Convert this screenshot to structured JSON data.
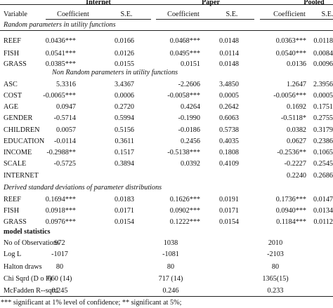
{
  "header": {
    "groups": [
      "Internet",
      "Paper",
      "Pooled"
    ],
    "variable_label": "Variable",
    "coef_label": "Coefficient",
    "se_label": "S.E."
  },
  "sections": {
    "random": "Random parameters in utility functions",
    "nonrandom": "Non Random parameters in utility functions",
    "derived": "Derived standard deviations of parameter distributions",
    "model": "model statistics"
  },
  "rows": [
    {
      "label": "REEF",
      "internet_coef": "0.0436***",
      "internet_se": "0.0166",
      "paper_coef": "0.0468***",
      "paper_se": "0.0148",
      "pooled_coef": "0.0363***",
      "pooled_se": "0.0118"
    },
    {
      "label": "FISH",
      "internet_coef": "0.0541***",
      "internet_se": "0.0126",
      "paper_coef": "0.0495***",
      "paper_se": "0.0114",
      "pooled_coef": "0.0540***",
      "pooled_se": "0.0084"
    },
    {
      "label": "GRASS",
      "internet_coef": "0.0385***",
      "internet_se": "0.0155",
      "paper_coef": "0.0151",
      "paper_se": "0.0148",
      "pooled_coef": "0.0136",
      "pooled_se": "0.0096"
    },
    {
      "label": "ASC",
      "internet_coef": "5.3316",
      "internet_se": "3.4367",
      "paper_coef": "-2.2606",
      "paper_se": "3.4850",
      "pooled_coef": "1.2647",
      "pooled_se": "2.3956"
    },
    {
      "label": "COST",
      "internet_coef": "-0.0065***",
      "internet_se": "0.0006",
      "paper_coef": "-0.0058***",
      "paper_se": "0.0005",
      "pooled_coef": "-0.0056***",
      "pooled_se": "0.0005"
    },
    {
      "label": "AGE",
      "internet_coef": "0.0947",
      "internet_se": "0.2720",
      "paper_coef": "0.4264",
      "paper_se": "0.2642",
      "pooled_coef": "0.1692",
      "pooled_se": "0.1751"
    },
    {
      "label": "GENDER",
      "internet_coef": "-0.5714",
      "internet_se": "0.5994",
      "paper_coef": "-0.1990",
      "paper_se": "0.6063",
      "pooled_coef": "-0.5118*",
      "pooled_se": "0.2755"
    },
    {
      "label": "CHILDREN",
      "internet_coef": "0.0057",
      "internet_se": "0.5156",
      "paper_coef": "-0.0186",
      "paper_se": "0.5738",
      "pooled_coef": "0.0382",
      "pooled_se": "0.3179"
    },
    {
      "label": "EDUCATION",
      "internet_coef": "-0.0114",
      "internet_se": "0.3611",
      "paper_coef": "0.2456",
      "paper_se": "0.4035",
      "pooled_coef": "0.0627",
      "pooled_se": "0.2386"
    },
    {
      "label": "INCOME",
      "internet_coef": "-0.2988**",
      "internet_se": "0.1517",
      "paper_coef": "-0.5138***",
      "paper_se": "0.1808",
      "pooled_coef": "-0.2536**",
      "pooled_se": "0.1065"
    },
    {
      "label": "SCALE",
      "internet_coef": "-0.5725",
      "internet_se": "0.3894",
      "paper_coef": "0.0392",
      "paper_se": "0.4109",
      "pooled_coef": "-0.2227",
      "pooled_se": "0.2545"
    },
    {
      "label": "INTERNET",
      "internet_coef": "",
      "internet_se": "",
      "paper_coef": "",
      "paper_se": "",
      "pooled_coef": "0.2240",
      "pooled_se": "0.2686"
    },
    {
      "label": "REEF",
      "internet_coef": "0.1694***",
      "internet_se": "0.0183",
      "paper_coef": "0.1626***",
      "paper_se": "0.0191",
      "pooled_coef": "0.1736***",
      "pooled_se": "0.0147"
    },
    {
      "label": "FISH",
      "internet_coef": "0.0918***",
      "internet_se": "0.0171",
      "paper_coef": "0.0902***",
      "paper_se": "0.0171",
      "pooled_coef": "0.0940***",
      "pooled_se": "0.0134"
    },
    {
      "label": "GRASS",
      "internet_coef": "0.0976***",
      "internet_se": "0.0154",
      "paper_coef": "0.1222***",
      "paper_se": "0.0154",
      "pooled_coef": "0.1184***",
      "pooled_se": "0.0112"
    }
  ],
  "stats": [
    {
      "label": "No of Observations",
      "internet": "972",
      "paper": "1038",
      "pooled": "2010"
    },
    {
      "label": "Log L",
      "internet": "-1017",
      "paper": "-1081",
      "pooled": "-2103"
    },
    {
      "label": "Halton draws",
      "internet": "80",
      "paper": "80",
      "pooled": "80"
    },
    {
      "label": "Chi Sqrd (D o F)",
      "internet": "660 (14)",
      "paper": "717 (14)",
      "pooled": "1365(15)"
    },
    {
      "label": "McFadden R--sqrd",
      "internet": "0.245",
      "paper": "0.246",
      "pooled": "0.233"
    }
  ],
  "footnote": "*** significant at 1% level of confidence; ** significant at 5%;"
}
